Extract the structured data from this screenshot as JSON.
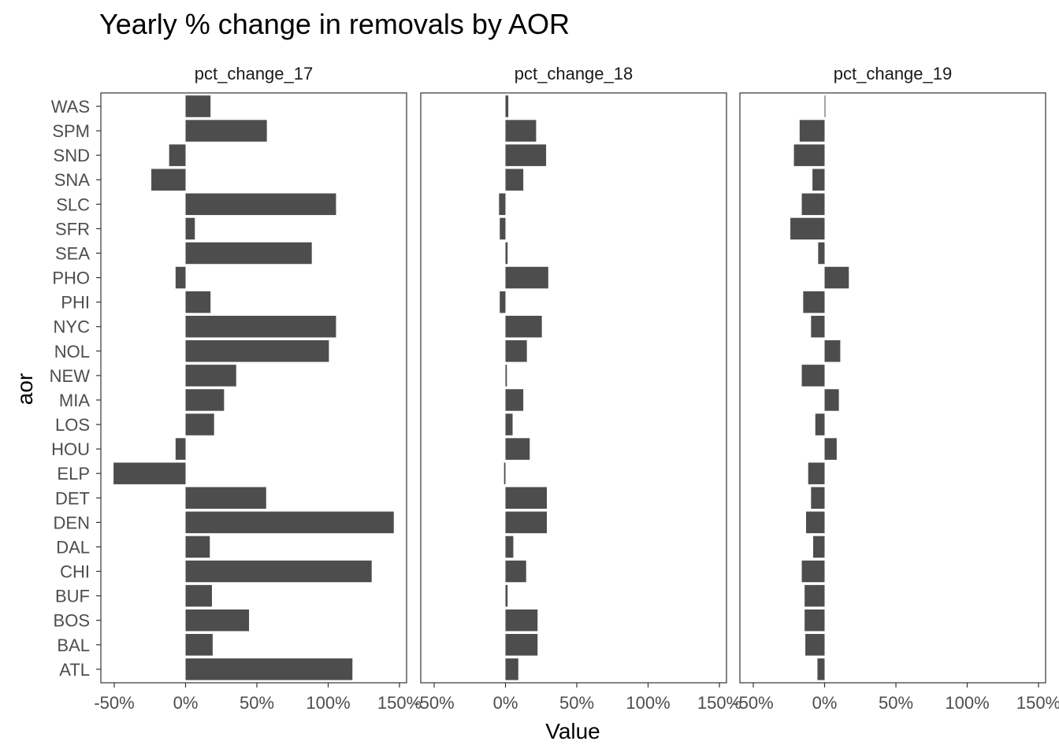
{
  "chart_data": {
    "type": "bar",
    "orientation": "horizontal",
    "title": "Yearly % change in removals by AOR",
    "xlabel": "Value",
    "ylabel": "aor",
    "xlim": [
      -50,
      150
    ],
    "x_ticks": [
      -50,
      0,
      50,
      100,
      150
    ],
    "x_tick_labels": [
      "-50%",
      "0%",
      "50%",
      "100%",
      "150%"
    ],
    "grid": false,
    "bar_color": "#4d4d4d",
    "categories": [
      "WAS",
      "SPM",
      "SND",
      "SNA",
      "SLC",
      "SFR",
      "SEA",
      "PHO",
      "PHI",
      "NYC",
      "NOL",
      "NEW",
      "MIA",
      "LOS",
      "HOU",
      "ELP",
      "DET",
      "DEN",
      "DAL",
      "CHI",
      "BUF",
      "BOS",
      "BAL",
      "ATL"
    ],
    "series": [
      {
        "name": "pct_change_17",
        "values": [
          17.5,
          57,
          -11.5,
          -24,
          105.5,
          6.5,
          88.5,
          -7,
          17.5,
          105.5,
          100.5,
          35.5,
          27,
          20,
          -7,
          -50.5,
          56.5,
          146,
          17,
          130.5,
          18.5,
          44.5,
          19,
          117
        ]
      },
      {
        "name": "pct_change_18",
        "values": [
          2,
          21.5,
          28.5,
          12.5,
          -4.5,
          -4,
          1.5,
          30,
          -4,
          25.5,
          15,
          1,
          12.5,
          5,
          17,
          -1,
          29,
          29,
          5.5,
          14.5,
          1.5,
          22.5,
          22.5,
          9
        ]
      },
      {
        "name": "pct_change_19",
        "values": [
          0.5,
          -17.5,
          -21.5,
          -8.5,
          -16,
          -24,
          -4.5,
          17,
          -15,
          -9.5,
          11,
          -16,
          10,
          -6.5,
          8.5,
          -11.5,
          -9.5,
          -13,
          -8,
          -16,
          -14,
          -14,
          -13.5,
          -5
        ]
      }
    ]
  }
}
